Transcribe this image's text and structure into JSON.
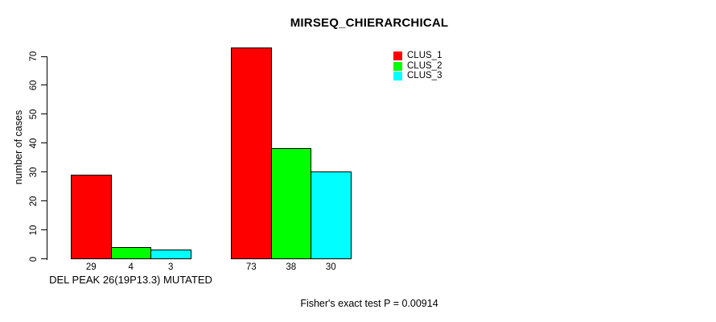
{
  "chart_data": {
    "type": "bar",
    "title": "MIRSEQ_CHIERARCHICAL",
    "ylabel": "number of cases",
    "xlabel": "",
    "categories": [
      "DEL PEAK 26(19P13.3) MUTATED",
      ""
    ],
    "series": [
      {
        "name": "CLUS_1",
        "color": "#ff0000",
        "values": [
          29,
          73
        ]
      },
      {
        "name": "CLUS_2",
        "color": "#00ff00",
        "values": [
          4,
          38
        ]
      },
      {
        "name": "CLUS_3",
        "color": "#00ffff",
        "values": [
          3,
          30
        ]
      }
    ],
    "bar_value_labels": [
      [
        29,
        4,
        3
      ],
      [
        73,
        38,
        30
      ]
    ],
    "ylim": [
      0,
      70
    ],
    "yticks": [
      0,
      10,
      20,
      30,
      40,
      50,
      60,
      70
    ],
    "grid": false,
    "legend_position": "top-right",
    "annotation": "Fisher's exact test P = 0.00914"
  },
  "colors": {
    "axis": "#000000",
    "background": "#ffffff",
    "bar_border": "#000000"
  }
}
